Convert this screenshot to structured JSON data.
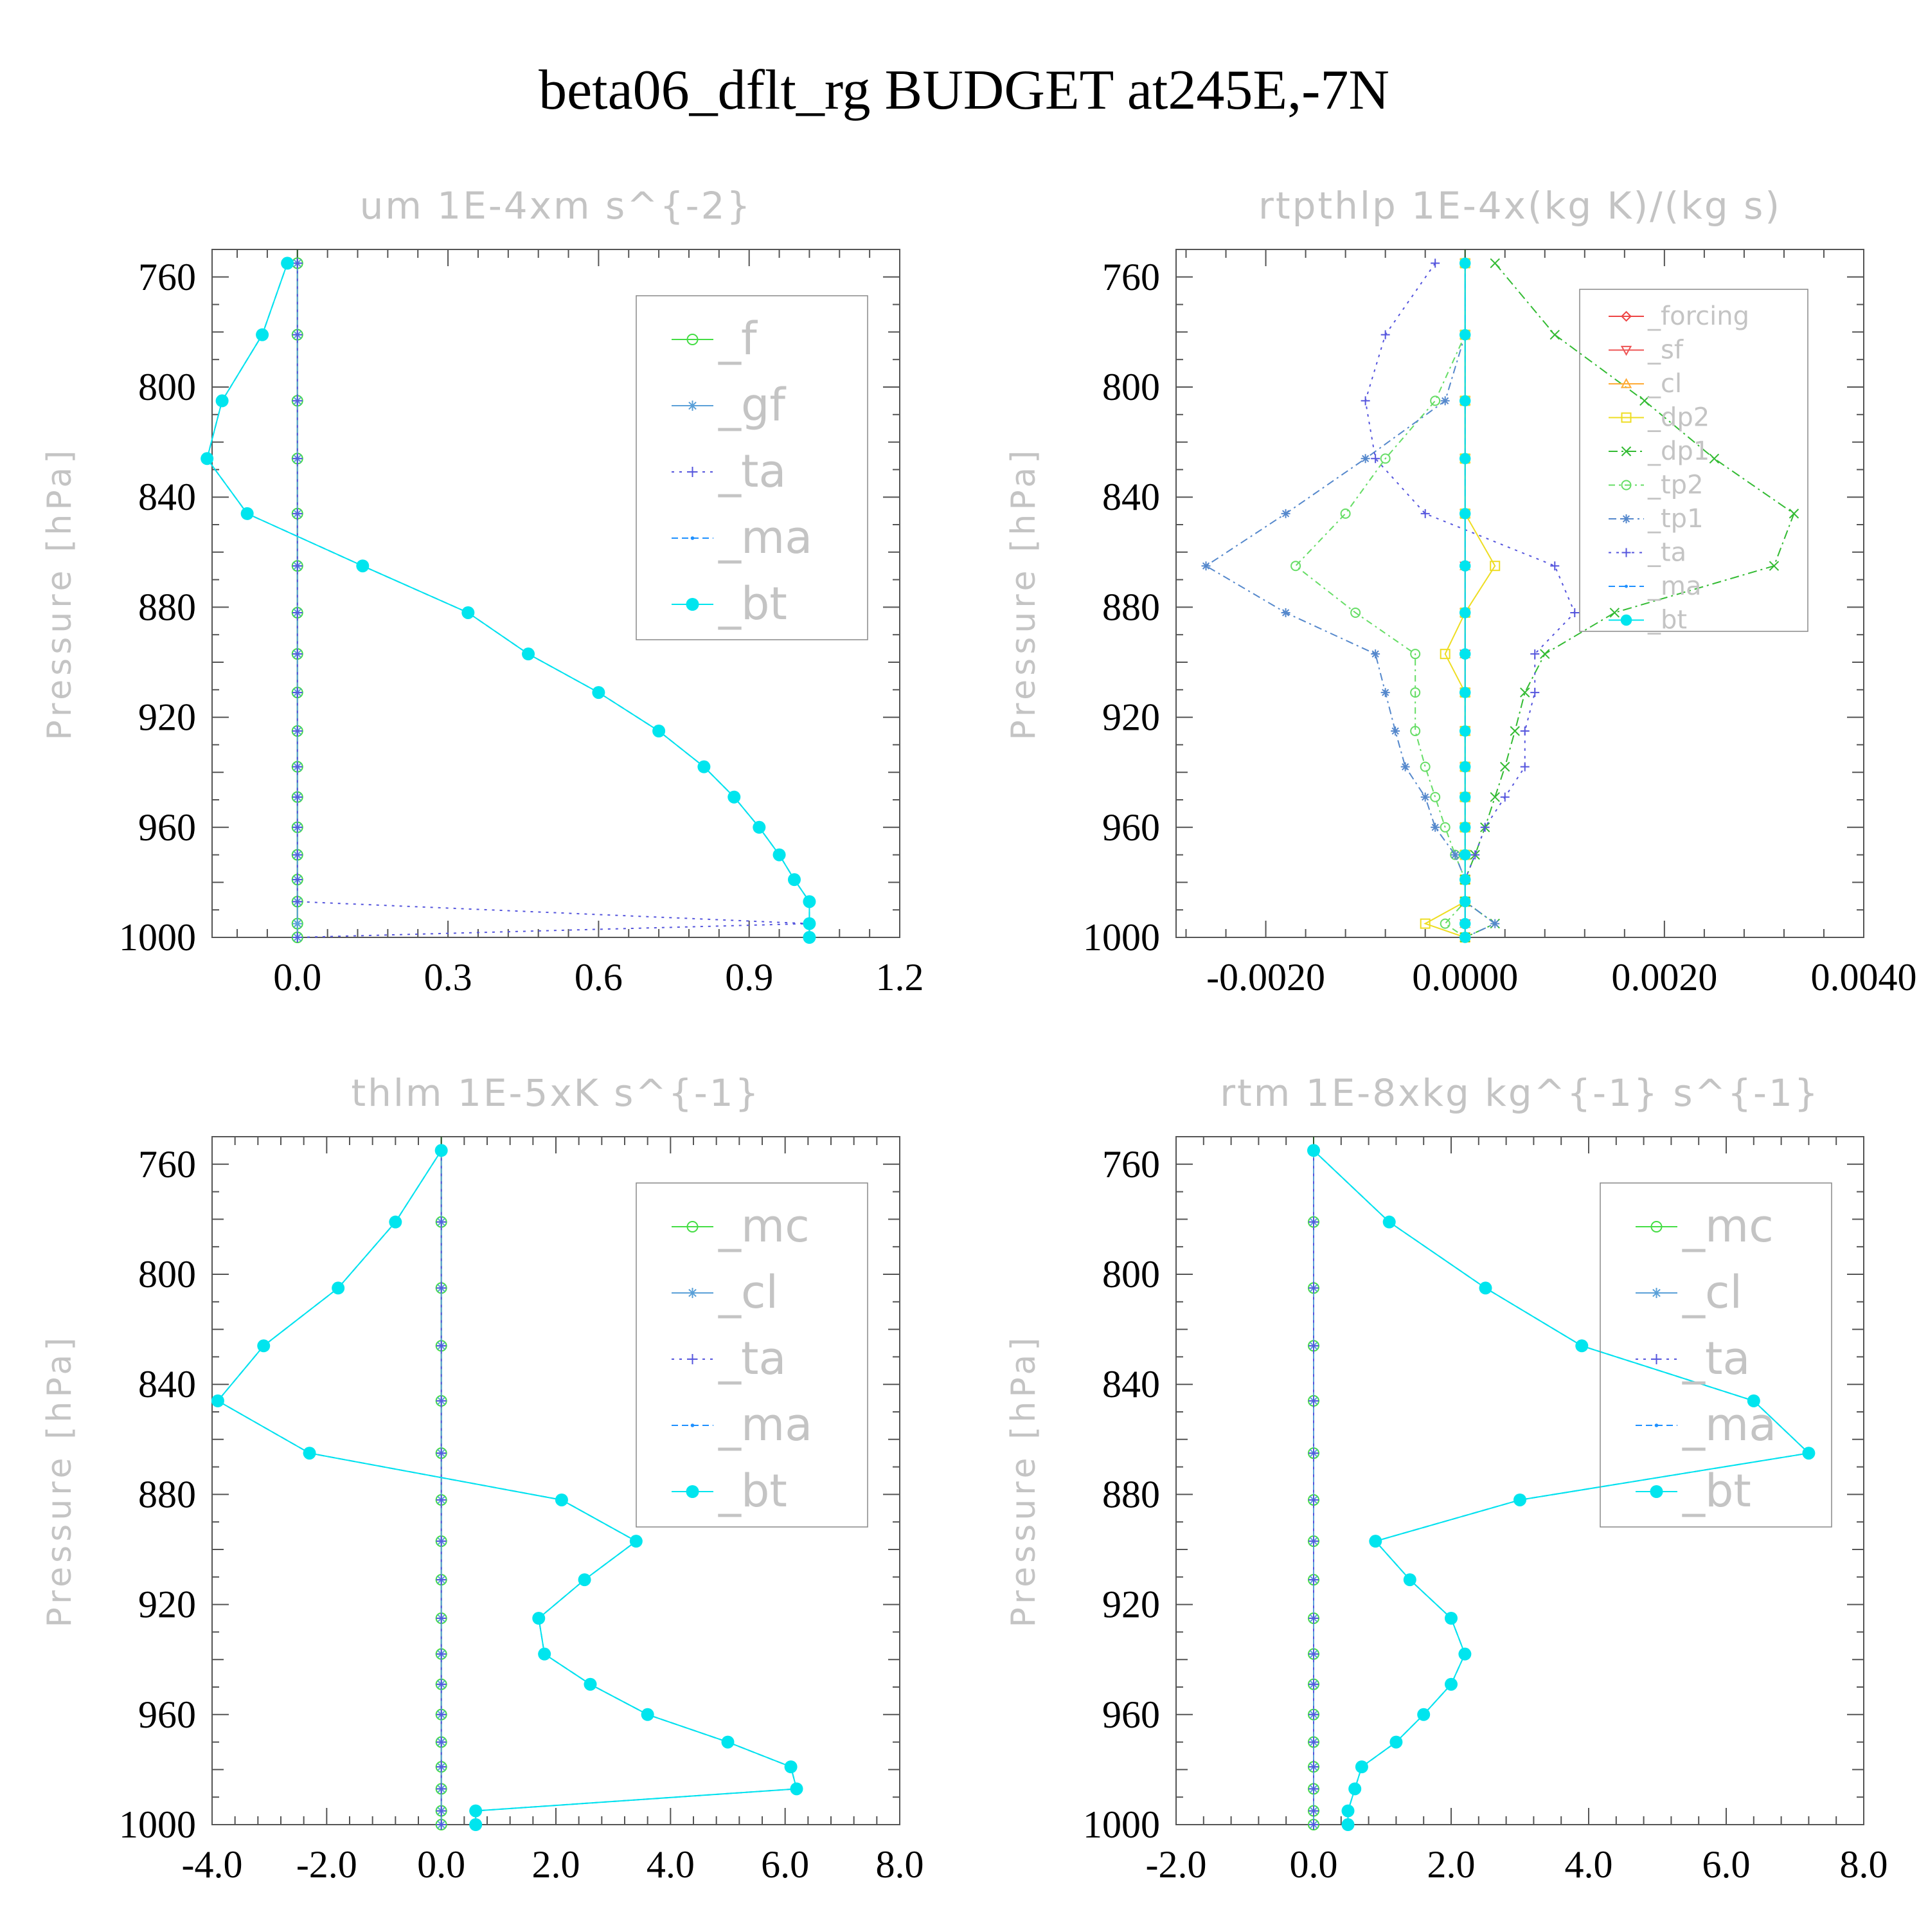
{
  "figure_title": "beta06_dflt_rg  BUDGET at245E,-7N",
  "chart_data": [
    {
      "type": "line",
      "title": "um  1E-4xm s^{-2}",
      "ylabel": "Pressure [hPa]",
      "xlabel": "",
      "xlim": [
        -0.17,
        1.2
      ],
      "ylim": [
        1000,
        750
      ],
      "xticks": [
        "0.0",
        "0.3",
        "0.6",
        "0.9",
        "1.2"
      ],
      "xtick_values": [
        0.0,
        0.3,
        0.6,
        0.9,
        1.2
      ],
      "yticks": [
        "760",
        "800",
        "840",
        "880",
        "920",
        "960",
        "1000"
      ],
      "ytick_values": [
        760,
        800,
        840,
        880,
        920,
        960,
        1000
      ],
      "legend_position": "top-right",
      "legend_size": "large",
      "levels": [
        755,
        781,
        805,
        826,
        846,
        865,
        882,
        897,
        911,
        925,
        938,
        949,
        960,
        970,
        979,
        987,
        995,
        1000
      ],
      "series": [
        {
          "name": "_f",
          "color": "#44dd44",
          "marker": "circle",
          "dash": "",
          "values": [
            0,
            0,
            0,
            0,
            0,
            0,
            0,
            0,
            0,
            0,
            0,
            0,
            0,
            0,
            0,
            0,
            0,
            0
          ]
        },
        {
          "name": "_gf",
          "color": "#5aa0d8",
          "marker": "star",
          "dash": "",
          "values": [
            0,
            0,
            0,
            0,
            0,
            0,
            0,
            0,
            0,
            0,
            0,
            0,
            0,
            0,
            0,
            0,
            0,
            0
          ]
        },
        {
          "name": "_ta",
          "color": "#5555dd",
          "marker": "plus",
          "dash": "4 8",
          "values": [
            0,
            0,
            0,
            0,
            0,
            0,
            0,
            0,
            0,
            0,
            0,
            0,
            0,
            0,
            0,
            0,
            1.02,
            0
          ]
        },
        {
          "name": "_ma",
          "color": "#1e90ff",
          "marker": "dot",
          "dash": "10 6",
          "values": [
            -0.02,
            -0.07,
            -0.15,
            -0.18,
            -0.1,
            0.13,
            0.34,
            0.46,
            0.6,
            0.72,
            0.81,
            0.87,
            0.92,
            0.96,
            0.99,
            1.02,
            1.02,
            1.02
          ]
        },
        {
          "name": "_bt",
          "color": "#00e5ee",
          "marker": "filled",
          "dash": "",
          "values": [
            -0.02,
            -0.07,
            -0.15,
            -0.18,
            -0.1,
            0.13,
            0.34,
            0.46,
            0.6,
            0.72,
            0.81,
            0.87,
            0.92,
            0.96,
            0.99,
            1.02,
            1.02,
            1.02
          ]
        }
      ]
    },
    {
      "type": "line",
      "title": "rtpthlp  1E-4x(kg K)/(kg s)",
      "ylabel": "Pressure [hPa]",
      "xlabel": "",
      "xlim": [
        -0.0029,
        0.004
      ],
      "ylim": [
        1000,
        750
      ],
      "xticks": [
        "-0.0020",
        "0.0000",
        "0.0020",
        "0.0040"
      ],
      "xtick_values": [
        -0.002,
        0.0,
        0.002,
        0.004
      ],
      "yticks": [
        "760",
        "800",
        "840",
        "880",
        "920",
        "960",
        "1000"
      ],
      "ytick_values": [
        760,
        800,
        840,
        880,
        920,
        960,
        1000
      ],
      "legend_position": "top-right",
      "legend_size": "small",
      "levels": [
        755,
        781,
        805,
        826,
        846,
        865,
        882,
        897,
        911,
        925,
        938,
        949,
        960,
        970,
        979,
        987,
        995,
        1000
      ],
      "series": [
        {
          "name": "_forcing",
          "color": "#ee4444",
          "marker": "diamond",
          "dash": "",
          "values": [
            0,
            0,
            0,
            0,
            0,
            0,
            0,
            0,
            0,
            0,
            0,
            0,
            0,
            0,
            0,
            0,
            0,
            0
          ]
        },
        {
          "name": "_sf",
          "color": "#ee5555",
          "marker": "tri-down",
          "dash": "",
          "values": [
            0,
            0,
            0,
            0,
            0,
            0,
            0,
            0,
            0,
            0,
            0,
            0,
            0,
            0,
            0,
            0,
            0,
            0
          ]
        },
        {
          "name": "_cl",
          "color": "#ffaa33",
          "marker": "tri-up",
          "dash": "",
          "values": [
            0,
            0,
            0,
            0,
            0,
            0,
            0,
            0,
            0,
            0,
            0,
            0,
            0,
            0,
            0,
            0,
            0,
            0
          ]
        },
        {
          "name": "_dp2",
          "color": "#eedd22",
          "marker": "square",
          "dash": "",
          "values": [
            0,
            0,
            0,
            0,
            0,
            0.0003,
            0,
            -0.0002,
            0,
            0,
            0,
            0,
            0,
            0,
            0,
            0,
            -0.0004,
            0
          ]
        },
        {
          "name": "_dp1",
          "color": "#33bb33",
          "marker": "x",
          "dash": "14 6 3 6",
          "values": [
            0.0003,
            0.0009,
            0.0018,
            0.0025,
            0.0033,
            0.0031,
            0.0015,
            0.0008,
            0.0006,
            0.0005,
            0.0004,
            0.0003,
            0.0002,
            0.0001,
            0,
            0,
            0.0003,
            0
          ]
        },
        {
          "name": "_tp2",
          "color": "#66dd66",
          "marker": "circle",
          "dash": "10 6 3 6",
          "values": [
            0,
            0,
            -0.0003,
            -0.0008,
            -0.0012,
            -0.0017,
            -0.0011,
            -0.0005,
            -0.0005,
            -0.0005,
            -0.0004,
            -0.0003,
            -0.0002,
            -0.0001,
            0,
            0,
            -0.0002,
            0
          ]
        },
        {
          "name": "_tp1",
          "color": "#5588cc",
          "marker": "star",
          "dash": "12 6 3 6",
          "values": [
            0,
            0,
            -0.0002,
            -0.001,
            -0.0018,
            -0.0026,
            -0.0018,
            -0.0009,
            -0.0008,
            -0.0007,
            -0.0006,
            -0.0004,
            -0.0003,
            -0.0001,
            0,
            0,
            0.0003,
            0
          ]
        },
        {
          "name": "_ta",
          "color": "#5555dd",
          "marker": "plus",
          "dash": "4 8",
          "values": [
            -0.0003,
            -0.0008,
            -0.001,
            -0.0009,
            -0.0004,
            0.0009,
            0.0011,
            0.0007,
            0.0007,
            0.0006,
            0.0006,
            0.0004,
            0.0002,
            0.0001,
            0,
            0,
            0,
            0
          ]
        },
        {
          "name": "_ma",
          "color": "#1e90ff",
          "marker": "dot",
          "dash": "10 6",
          "values": [
            0,
            0,
            0,
            0,
            0,
            0,
            0,
            0,
            0,
            0,
            0,
            0,
            0,
            0,
            0,
            0,
            0,
            0
          ]
        },
        {
          "name": "_bt",
          "color": "#00e5ee",
          "marker": "filled",
          "dash": "",
          "values": [
            0,
            0,
            0,
            0,
            0,
            0,
            0,
            0,
            0,
            0,
            0,
            0,
            0,
            0,
            0,
            0,
            0,
            0
          ]
        }
      ]
    },
    {
      "type": "line",
      "title": "thlm  1E-5xK s^{-1}",
      "ylabel": "Pressure [hPa]",
      "xlabel": "",
      "xlim": [
        -4.0,
        8.0
      ],
      "ylim": [
        1000,
        750
      ],
      "xticks": [
        "-4.0",
        "-2.0",
        "0.0",
        "2.0",
        "4.0",
        "6.0",
        "8.0"
      ],
      "xtick_values": [
        -4,
        -2,
        0,
        2,
        4,
        6,
        8
      ],
      "yticks": [
        "760",
        "800",
        "840",
        "880",
        "920",
        "960",
        "1000"
      ],
      "ytick_values": [
        760,
        800,
        840,
        880,
        920,
        960,
        1000
      ],
      "legend_position": "top-right",
      "legend_size": "large",
      "levels": [
        755,
        781,
        805,
        826,
        846,
        865,
        882,
        897,
        911,
        925,
        938,
        949,
        960,
        970,
        979,
        987,
        995,
        1000
      ],
      "series": [
        {
          "name": "_mc",
          "color": "#44dd44",
          "marker": "circle",
          "dash": "",
          "values": [
            0,
            0,
            0,
            0,
            0,
            0,
            0,
            0,
            0,
            0,
            0,
            0,
            0,
            0,
            0,
            0,
            0,
            0
          ]
        },
        {
          "name": "_cl",
          "color": "#5aa0d8",
          "marker": "star",
          "dash": "",
          "values": [
            0,
            0,
            0,
            0,
            0,
            0,
            0,
            0,
            0,
            0,
            0,
            0,
            0,
            0,
            0,
            0,
            0,
            0
          ]
        },
        {
          "name": "_ta",
          "color": "#5555dd",
          "marker": "plus",
          "dash": "4 8",
          "values": [
            0,
            0,
            0,
            0,
            0,
            0,
            0,
            0,
            0,
            0,
            0,
            0,
            0,
            0,
            0,
            0,
            0,
            0
          ]
        },
        {
          "name": "_ma",
          "color": "#1e90ff",
          "marker": "dot",
          "dash": "10 6",
          "values": [
            0,
            -0.8,
            -1.8,
            -3.1,
            -3.9,
            -2.3,
            2.1,
            3.4,
            2.5,
            1.7,
            1.8,
            2.6,
            3.6,
            5.0,
            6.1,
            6.2,
            0.6,
            0.6
          ]
        },
        {
          "name": "_bt",
          "color": "#00e5ee",
          "marker": "filled",
          "dash": "",
          "values": [
            0,
            -0.8,
            -1.8,
            -3.1,
            -3.9,
            -2.3,
            2.1,
            3.4,
            2.5,
            1.7,
            1.8,
            2.6,
            3.6,
            5.0,
            6.1,
            6.2,
            0.6,
            0.6
          ]
        }
      ]
    },
    {
      "type": "line",
      "title": "rtm  1E-8xkg kg^{-1} s^{-1}",
      "ylabel": "Pressure [hPa]",
      "xlabel": "",
      "xlim": [
        -2.0,
        8.0
      ],
      "ylim": [
        1000,
        750
      ],
      "xticks": [
        "-2.0",
        "0.0",
        "2.0",
        "4.0",
        "6.0",
        "8.0"
      ],
      "xtick_values": [
        -2,
        0,
        2,
        4,
        6,
        8
      ],
      "yticks": [
        "760",
        "800",
        "840",
        "880",
        "920",
        "960",
        "1000"
      ],
      "ytick_values": [
        760,
        800,
        840,
        880,
        920,
        960,
        1000
      ],
      "legend_position": "top-right",
      "legend_size": "large",
      "levels": [
        755,
        781,
        805,
        826,
        846,
        865,
        882,
        897,
        911,
        925,
        938,
        949,
        960,
        970,
        979,
        987,
        995,
        1000
      ],
      "series": [
        {
          "name": "_mc",
          "color": "#44dd44",
          "marker": "circle",
          "dash": "",
          "values": [
            0,
            0,
            0,
            0,
            0,
            0,
            0,
            0,
            0,
            0,
            0,
            0,
            0,
            0,
            0,
            0,
            0,
            0
          ]
        },
        {
          "name": "_cl",
          "color": "#5aa0d8",
          "marker": "star",
          "dash": "",
          "values": [
            0,
            0,
            0,
            0,
            0,
            0,
            0,
            0,
            0,
            0,
            0,
            0,
            0,
            0,
            0,
            0,
            0,
            0
          ]
        },
        {
          "name": "_ta",
          "color": "#5555dd",
          "marker": "plus",
          "dash": "4 8",
          "values": [
            0,
            0,
            0,
            0,
            0,
            0,
            0,
            0,
            0,
            0,
            0,
            0,
            0,
            0,
            0,
            0,
            0,
            0
          ]
        },
        {
          "name": "_ma",
          "color": "#1e90ff",
          "marker": "dot",
          "dash": "10 6",
          "values": [
            0,
            1.1,
            2.5,
            3.9,
            6.4,
            7.2,
            3.0,
            0.9,
            1.4,
            2.0,
            2.2,
            2.0,
            1.6,
            1.2,
            0.7,
            0.6,
            0.5,
            0.5
          ]
        },
        {
          "name": "_bt",
          "color": "#00e5ee",
          "marker": "filled",
          "dash": "",
          "values": [
            0,
            1.1,
            2.5,
            3.9,
            6.4,
            7.2,
            3.0,
            0.9,
            1.4,
            2.0,
            2.2,
            2.0,
            1.6,
            1.2,
            0.7,
            0.6,
            0.5,
            0.5
          ]
        }
      ]
    }
  ]
}
